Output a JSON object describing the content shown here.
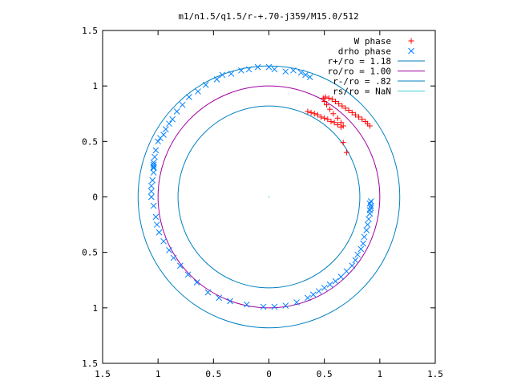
{
  "chart_data": {
    "type": "scatter",
    "title": "m1/n1.5/q1.5/r-+.70-j359/M15.0/512",
    "xlabel": "",
    "ylabel": "",
    "xlim": [
      -1.5,
      1.5
    ],
    "ylim": [
      -1.5,
      1.5
    ],
    "grid": false,
    "legend_position": "top-right",
    "x_ticks": [
      {
        "value": -1.5,
        "label": "1.5"
      },
      {
        "value": -1.0,
        "label": "1"
      },
      {
        "value": -0.5,
        "label": "0.5"
      },
      {
        "value": 0.0,
        "label": "0"
      },
      {
        "value": 0.5,
        "label": "0.5"
      },
      {
        "value": 1.0,
        "label": "1"
      },
      {
        "value": 1.5,
        "label": "1.5"
      }
    ],
    "y_ticks": [
      {
        "value": 1.5,
        "label": "1.5"
      },
      {
        "value": 1.0,
        "label": "1"
      },
      {
        "value": 0.5,
        "label": "0.5"
      },
      {
        "value": 0.0,
        "label": "0"
      },
      {
        "value": -0.5,
        "label": "0.5"
      },
      {
        "value": -1.0,
        "label": "1"
      },
      {
        "value": -1.5,
        "label": "1.5"
      }
    ],
    "series": [
      {
        "name": "W phase",
        "marker": "plus",
        "color": "#ff0000",
        "points": [
          [
            0.35,
            0.77
          ],
          [
            0.38,
            0.76
          ],
          [
            0.41,
            0.75
          ],
          [
            0.44,
            0.74
          ],
          [
            0.47,
            0.72
          ],
          [
            0.5,
            0.71
          ],
          [
            0.53,
            0.7
          ],
          [
            0.56,
            0.68
          ],
          [
            0.59,
            0.67
          ],
          [
            0.62,
            0.65
          ],
          [
            0.65,
            0.63
          ],
          [
            0.67,
            0.64
          ],
          [
            0.65,
            0.67
          ],
          [
            0.62,
            0.71
          ],
          [
            0.58,
            0.75
          ],
          [
            0.55,
            0.79
          ],
          [
            0.52,
            0.83
          ],
          [
            0.5,
            0.86
          ],
          [
            0.49,
            0.89
          ],
          [
            0.51,
            0.9
          ],
          [
            0.54,
            0.89
          ],
          [
            0.57,
            0.88
          ],
          [
            0.6,
            0.86
          ],
          [
            0.63,
            0.84
          ],
          [
            0.66,
            0.82
          ],
          [
            0.69,
            0.8
          ],
          [
            0.72,
            0.78
          ],
          [
            0.75,
            0.76
          ],
          [
            0.78,
            0.74
          ],
          [
            0.81,
            0.72
          ],
          [
            0.84,
            0.7
          ],
          [
            0.87,
            0.68
          ],
          [
            0.89,
            0.66
          ],
          [
            0.91,
            0.64
          ],
          [
            0.67,
            0.49
          ],
          [
            0.7,
            0.4
          ]
        ]
      },
      {
        "name": "drho phase",
        "marker": "cross",
        "color": "#0080ff",
        "points": [
          [
            -0.47,
            1.06
          ],
          [
            -0.42,
            1.1
          ],
          [
            -0.34,
            1.11
          ],
          [
            -0.25,
            1.14
          ],
          [
            -0.18,
            1.15
          ],
          [
            -0.1,
            1.17
          ],
          [
            0.0,
            1.17
          ],
          [
            0.05,
            1.15
          ],
          [
            0.15,
            1.13
          ],
          [
            0.22,
            1.14
          ],
          [
            0.29,
            1.12
          ],
          [
            0.33,
            1.1
          ],
          [
            0.37,
            1.08
          ],
          [
            -0.57,
            1.01
          ],
          [
            -0.64,
            0.95
          ],
          [
            -0.72,
            0.9
          ],
          [
            -0.78,
            0.83
          ],
          [
            -0.83,
            0.77
          ],
          [
            -0.87,
            0.7
          ],
          [
            -0.9,
            0.66
          ],
          [
            -0.93,
            0.61
          ],
          [
            -0.95,
            0.56
          ],
          [
            -0.98,
            0.53
          ],
          [
            -1.0,
            0.5
          ],
          [
            -1.02,
            0.42
          ],
          [
            -1.03,
            0.36
          ],
          [
            -1.04,
            0.31
          ],
          [
            -1.04,
            0.29
          ],
          [
            -1.04,
            0.27
          ],
          [
            -1.04,
            0.26
          ],
          [
            -1.04,
            0.22
          ],
          [
            -1.05,
            0.15
          ],
          [
            -1.06,
            0.1
          ],
          [
            -1.06,
            0.05
          ],
          [
            -1.06,
            0.0
          ],
          [
            -1.04,
            -0.08
          ],
          [
            -1.02,
            -0.18
          ],
          [
            -1.01,
            -0.25
          ],
          [
            -0.99,
            -0.32
          ],
          [
            -0.95,
            -0.4
          ],
          [
            -0.9,
            -0.48
          ],
          [
            -0.86,
            -0.55
          ],
          [
            -0.8,
            -0.62
          ],
          [
            -0.73,
            -0.7
          ],
          [
            -0.65,
            -0.77
          ],
          [
            -0.55,
            -0.86
          ],
          [
            -0.45,
            -0.91
          ],
          [
            -0.35,
            -0.94
          ],
          [
            -0.2,
            -0.97
          ],
          [
            -0.05,
            -0.99
          ],
          [
            0.05,
            -0.99
          ],
          [
            0.15,
            -0.98
          ],
          [
            0.25,
            -0.95
          ],
          [
            0.35,
            -0.91
          ],
          [
            0.45,
            -0.85
          ],
          [
            0.4,
            -0.88
          ],
          [
            0.5,
            -0.82
          ],
          [
            0.55,
            -0.79
          ],
          [
            0.6,
            -0.76
          ],
          [
            0.65,
            -0.72
          ],
          [
            0.7,
            -0.67
          ],
          [
            0.75,
            -0.62
          ],
          [
            0.78,
            -0.57
          ],
          [
            0.8,
            -0.52
          ],
          [
            0.83,
            -0.47
          ],
          [
            0.85,
            -0.42
          ],
          [
            0.86,
            -0.36
          ],
          [
            0.88,
            -0.3
          ],
          [
            0.89,
            -0.25
          ],
          [
            0.9,
            -0.2
          ],
          [
            0.91,
            -0.15
          ],
          [
            0.91,
            -0.12
          ],
          [
            0.92,
            -0.1
          ],
          [
            0.92,
            -0.08
          ],
          [
            0.91,
            -0.06
          ],
          [
            0.92,
            -0.04
          ]
        ]
      },
      {
        "name": "r+/ro = 1.18",
        "type": "circle",
        "radius": 1.18,
        "color": "#0080c0"
      },
      {
        "name": "ro/ro = 1.00",
        "type": "circle",
        "radius": 1.0,
        "color": "#a000a0"
      },
      {
        "name": "r-/ro = .82",
        "type": "circle",
        "radius": 0.82,
        "color": "#0080c0"
      },
      {
        "name": "rs/ro = NaN",
        "type": "line",
        "color": "#40d0d0"
      }
    ]
  }
}
